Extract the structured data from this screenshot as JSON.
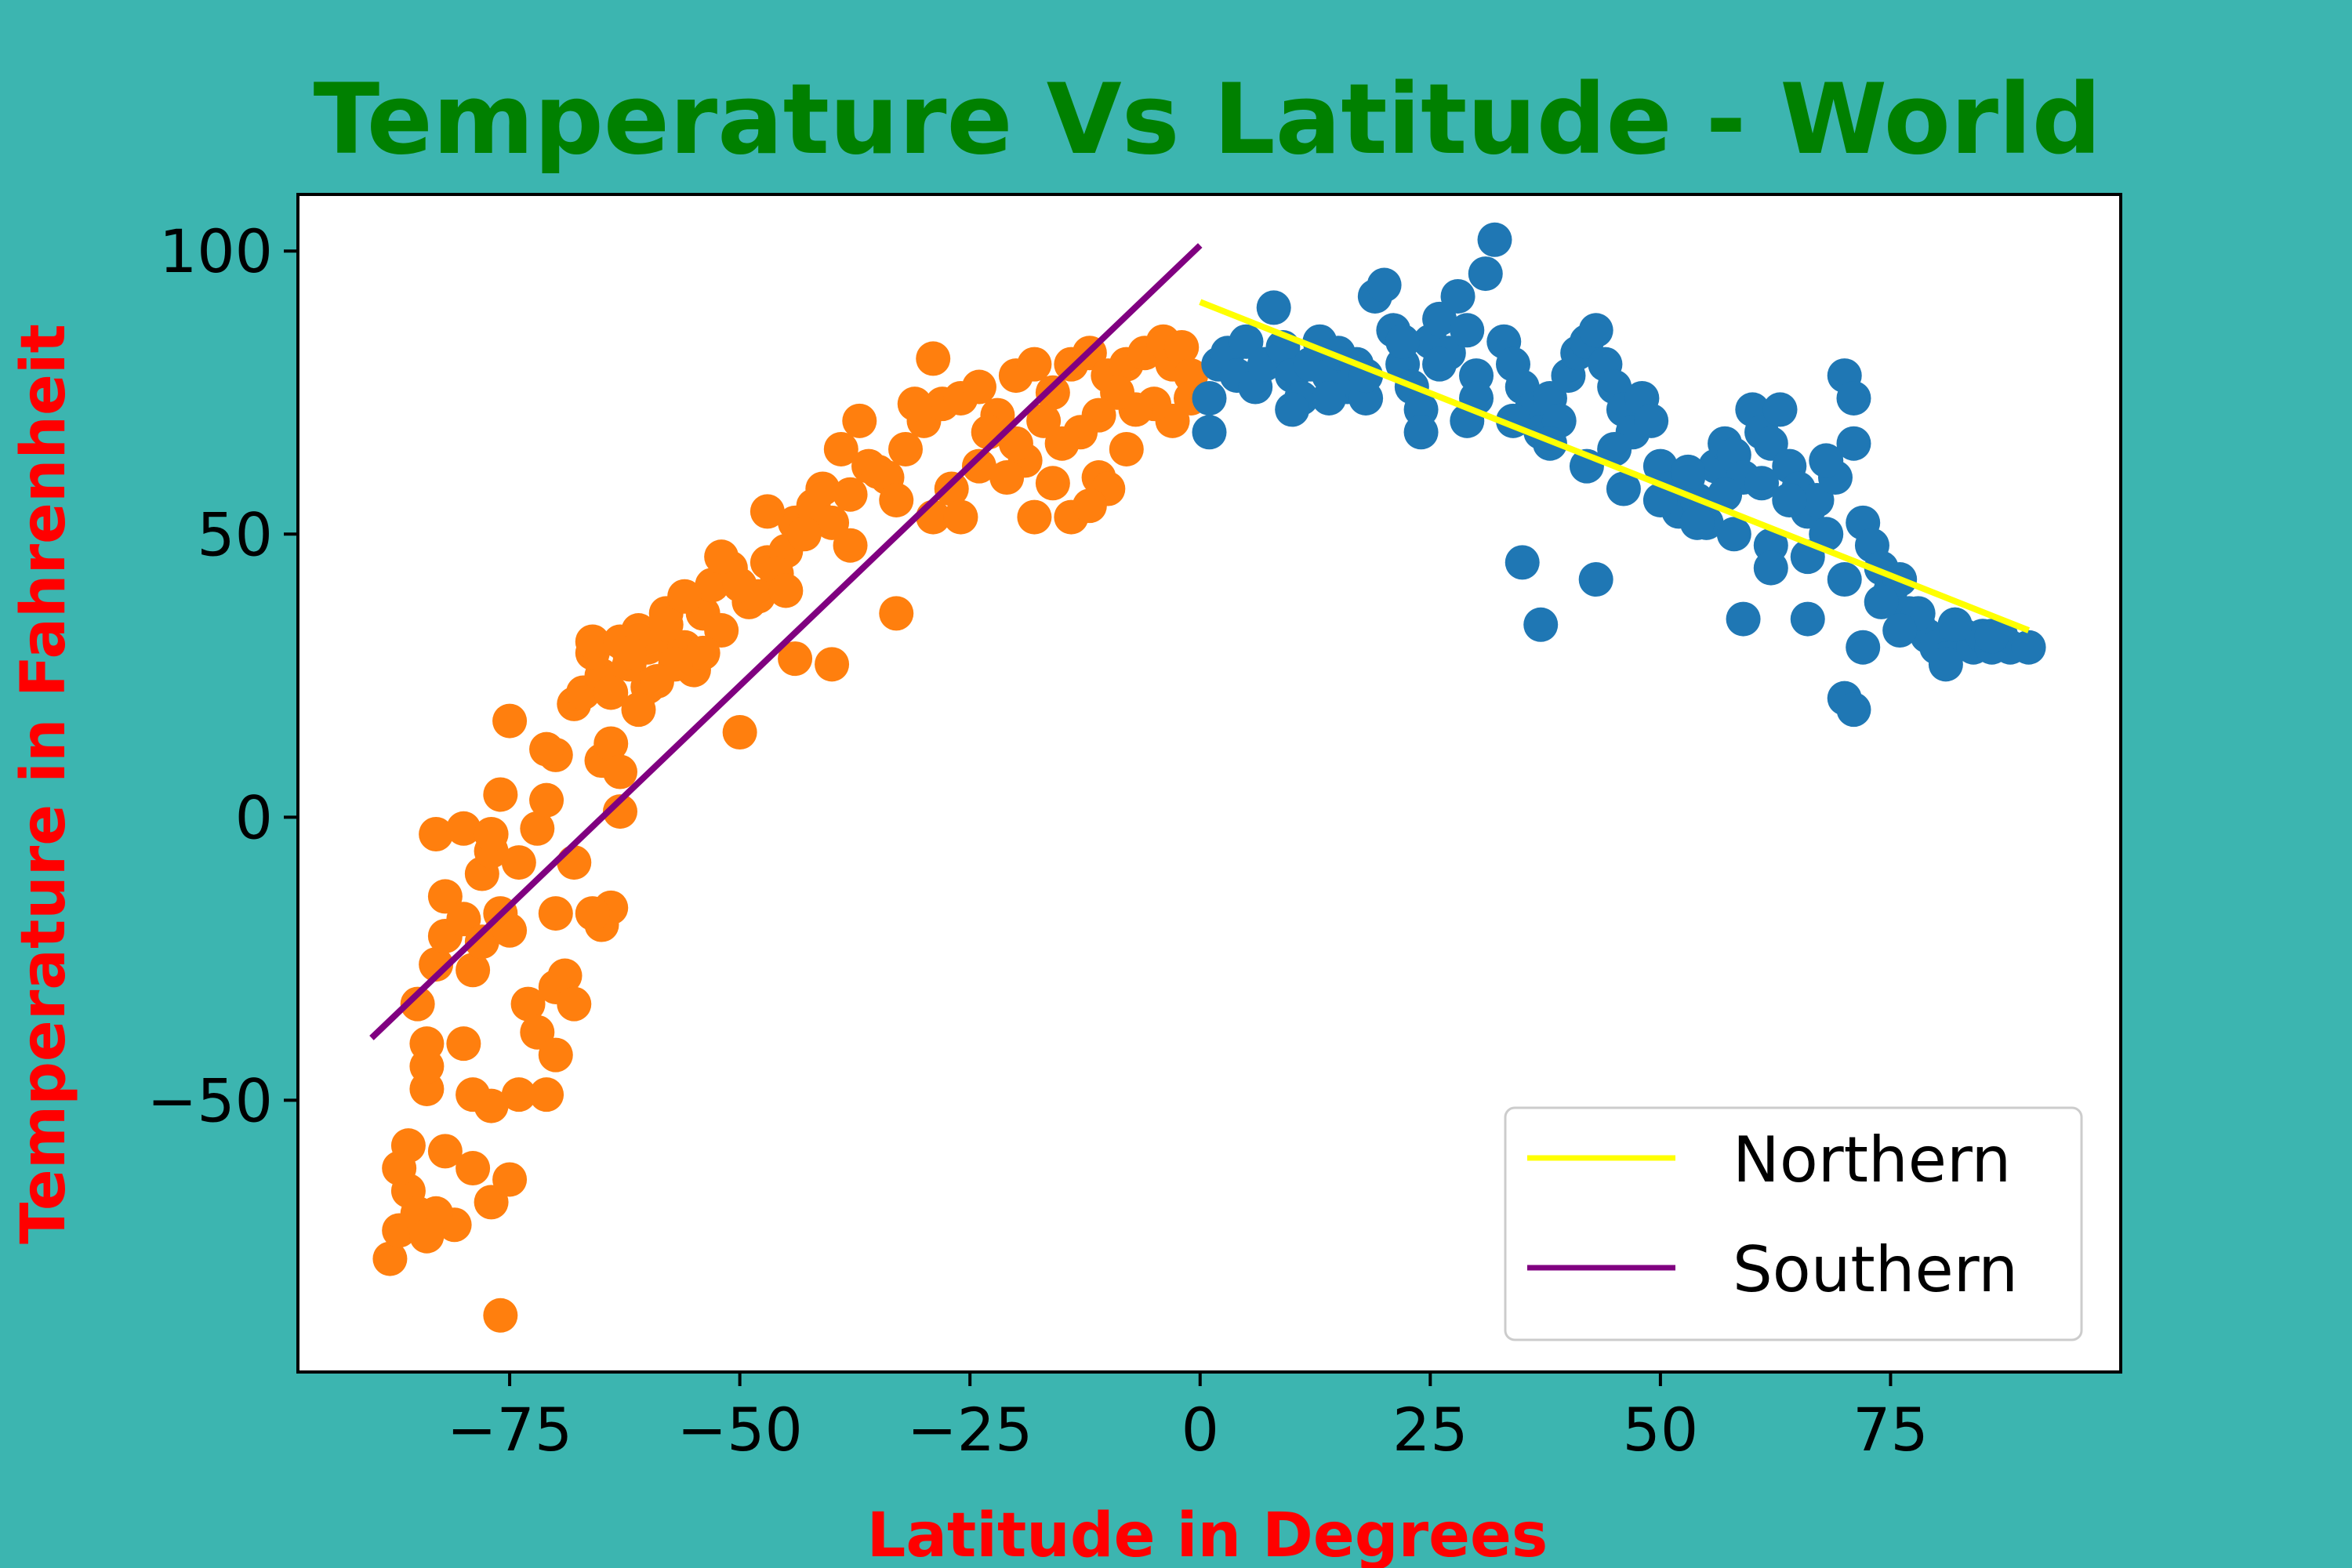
{
  "chart_data": {
    "type": "scatter",
    "title": "Temperature Vs Latitude - World",
    "xlabel": "Latitude in Degrees",
    "ylabel": "Temperature in Fahrenheit",
    "xlim": [
      -98,
      100
    ],
    "ylim": [
      -98,
      110
    ],
    "x_ticks": [
      -75,
      -50,
      -25,
      0,
      25,
      50,
      75
    ],
    "y_ticks": [
      -50,
      0,
      50,
      100
    ],
    "x_tick_labels": [
      "−75",
      "−50",
      "−25",
      "0",
      "25",
      "50",
      "75"
    ],
    "y_tick_labels": [
      "−50",
      "0",
      "50",
      "100"
    ],
    "grid": false,
    "legend_position": "lower-right",
    "colors": {
      "background": "#3cb5b0",
      "title": "#008000",
      "axis_label": "#ff0000",
      "southern_points": "#ff7f0e",
      "northern_points": "#1f77b4",
      "northern_line": "#ffff00",
      "southern_line": "#800080"
    },
    "scatter_series": [
      {
        "group": "southern",
        "color": "#ff7f0e",
        "points": [
          [
            -88,
            -78
          ],
          [
            -87,
            -73
          ],
          [
            -86,
            -66
          ],
          [
            -85,
            -70
          ],
          [
            -87,
            -62
          ],
          [
            -86,
            -58
          ],
          [
            -84,
            -48
          ],
          [
            -84,
            -44
          ],
          [
            -84,
            -40
          ],
          [
            -85,
            -33
          ],
          [
            -83,
            -26
          ],
          [
            -82,
            -14
          ],
          [
            -83,
            -3
          ],
          [
            -80,
            -2
          ],
          [
            -82,
            -21
          ],
          [
            -80,
            -18
          ],
          [
            -79,
            -27
          ],
          [
            -78,
            -22
          ],
          [
            -78,
            -10
          ],
          [
            -77,
            -6
          ],
          [
            -77,
            -3
          ],
          [
            -76,
            -17
          ],
          [
            -75,
            -20
          ],
          [
            -74,
            -8
          ],
          [
            -76,
            4
          ],
          [
            -75,
            17
          ],
          [
            -72,
            -2
          ],
          [
            -71,
            3
          ],
          [
            -70,
            -17
          ],
          [
            -70,
            -30
          ],
          [
            -73,
            -33
          ],
          [
            -72,
            -38
          ],
          [
            -70,
            -42
          ],
          [
            -71,
            -49
          ],
          [
            -74,
            -49
          ],
          [
            -77,
            -51
          ],
          [
            -79,
            -49
          ],
          [
            -80,
            -40
          ],
          [
            -82,
            -59
          ],
          [
            -79,
            -62
          ],
          [
            -81,
            -72
          ],
          [
            -83,
            -70
          ],
          [
            -84,
            -74
          ],
          [
            -77,
            -68
          ],
          [
            -75,
            -64
          ],
          [
            -76,
            -88
          ],
          [
            -69,
            -28
          ],
          [
            -68,
            -33
          ],
          [
            -68,
            -8
          ],
          [
            -70,
            11
          ],
          [
            -71,
            12
          ],
          [
            -68,
            20
          ],
          [
            -67,
            22
          ],
          [
            -65,
            25
          ],
          [
            -66,
            29
          ],
          [
            -66,
            31
          ],
          [
            -65,
            10
          ],
          [
            -64,
            13
          ],
          [
            -63,
            8
          ],
          [
            -64,
            -16
          ],
          [
            -65,
            -19
          ],
          [
            -66,
            -17
          ],
          [
            -63,
            1
          ],
          [
            -62,
            27
          ],
          [
            -60,
            23
          ],
          [
            -60,
            30
          ],
          [
            -58,
            32
          ],
          [
            -58,
            36
          ],
          [
            -56,
            30
          ],
          [
            -55,
            26
          ],
          [
            -54,
            36
          ],
          [
            -53,
            41
          ],
          [
            -51,
            44
          ],
          [
            -49,
            38
          ],
          [
            -47,
            45
          ],
          [
            -45,
            47
          ],
          [
            -44,
            52
          ],
          [
            -42,
            55
          ],
          [
            -40,
            52
          ],
          [
            -38,
            57
          ],
          [
            -36,
            62
          ],
          [
            -34,
            60
          ],
          [
            -33,
            56
          ],
          [
            -32,
            65
          ],
          [
            -30,
            70
          ],
          [
            -28,
            73
          ],
          [
            -26,
            74
          ],
          [
            -24,
            76
          ],
          [
            -22,
            71
          ],
          [
            -20,
            78
          ],
          [
            -18,
            80
          ],
          [
            -16,
            75
          ],
          [
            -14,
            80
          ],
          [
            -12,
            82
          ],
          [
            -10,
            78
          ],
          [
            -8,
            80
          ],
          [
            -6,
            82
          ],
          [
            -4,
            84
          ],
          [
            -3,
            80
          ],
          [
            -2,
            83
          ],
          [
            -1,
            78
          ],
          [
            -1,
            74
          ],
          [
            -3,
            70
          ],
          [
            -5,
            73
          ],
          [
            -7,
            72
          ],
          [
            -9,
            75
          ],
          [
            -11,
            71
          ],
          [
            -13,
            68
          ],
          [
            -15,
            66
          ],
          [
            -17,
            70
          ],
          [
            -19,
            63
          ],
          [
            -21,
            60
          ],
          [
            -24,
            62
          ],
          [
            -27,
            58
          ],
          [
            -29,
            53
          ],
          [
            -26,
            53
          ],
          [
            -18,
            53
          ],
          [
            -14,
            53
          ],
          [
            -16,
            59
          ],
          [
            -11,
            60
          ],
          [
            -8,
            65
          ],
          [
            -10,
            58
          ],
          [
            -12,
            55
          ],
          [
            -20,
            66
          ],
          [
            -23,
            68
          ],
          [
            -31,
            73
          ],
          [
            -29,
            81
          ],
          [
            -37,
            70
          ],
          [
            -39,
            65
          ],
          [
            -41,
            58
          ],
          [
            -43,
            50
          ],
          [
            -46,
            43
          ],
          [
            -48,
            39
          ],
          [
            -50,
            41
          ],
          [
            -52,
            33
          ],
          [
            -54,
            29
          ],
          [
            -57,
            27
          ],
          [
            -59,
            24
          ],
          [
            -61,
            33
          ],
          [
            -63,
            31
          ],
          [
            -64,
            22
          ],
          [
            -61,
            19
          ],
          [
            -50,
            15
          ],
          [
            -44,
            28
          ],
          [
            -40,
            27
          ],
          [
            -33,
            36
          ],
          [
            -35,
            61
          ],
          [
            -47,
            54
          ],
          [
            -52,
            46
          ],
          [
            -56,
            39
          ],
          [
            -58,
            34
          ],
          [
            -62,
            29
          ],
          [
            -45,
            40
          ],
          [
            -38,
            48
          ]
        ]
      },
      {
        "group": "northern",
        "color": "#1f77b4",
        "points": [
          [
            1,
            68
          ],
          [
            1,
            74
          ],
          [
            2,
            80
          ],
          [
            3,
            82
          ],
          [
            4,
            78
          ],
          [
            5,
            84
          ],
          [
            6,
            76
          ],
          [
            7,
            80
          ],
          [
            8,
            90
          ],
          [
            9,
            83
          ],
          [
            10,
            78
          ],
          [
            11,
            74
          ],
          [
            12,
            80
          ],
          [
            13,
            84
          ],
          [
            14,
            78
          ],
          [
            15,
            82
          ],
          [
            16,
            76
          ],
          [
            17,
            80
          ],
          [
            18,
            74
          ],
          [
            19,
            92
          ],
          [
            20,
            94
          ],
          [
            21,
            86
          ],
          [
            22,
            80
          ],
          [
            23,
            76
          ],
          [
            24,
            72
          ],
          [
            25,
            84
          ],
          [
            26,
            88
          ],
          [
            27,
            82
          ],
          [
            28,
            92
          ],
          [
            29,
            86
          ],
          [
            30,
            78
          ],
          [
            31,
            96
          ],
          [
            32,
            102
          ],
          [
            33,
            84
          ],
          [
            34,
            80
          ],
          [
            35,
            76
          ],
          [
            36,
            72
          ],
          [
            37,
            68
          ],
          [
            38,
            74
          ],
          [
            39,
            70
          ],
          [
            40,
            78
          ],
          [
            41,
            82
          ],
          [
            42,
            84
          ],
          [
            43,
            86
          ],
          [
            44,
            80
          ],
          [
            45,
            76
          ],
          [
            46,
            72
          ],
          [
            47,
            68
          ],
          [
            48,
            74
          ],
          [
            49,
            70
          ],
          [
            50,
            62
          ],
          [
            51,
            58
          ],
          [
            52,
            54
          ],
          [
            53,
            60
          ],
          [
            54,
            56
          ],
          [
            55,
            52
          ],
          [
            56,
            62
          ],
          [
            57,
            66
          ],
          [
            58,
            64
          ],
          [
            59,
            60
          ],
          [
            60,
            72
          ],
          [
            61,
            68
          ],
          [
            62,
            66
          ],
          [
            63,
            72
          ],
          [
            64,
            62
          ],
          [
            65,
            58
          ],
          [
            66,
            54
          ],
          [
            67,
            56
          ],
          [
            68,
            50
          ],
          [
            69,
            60
          ],
          [
            70,
            78
          ],
          [
            71,
            74
          ],
          [
            72,
            52
          ],
          [
            73,
            48
          ],
          [
            74,
            44
          ],
          [
            75,
            40
          ],
          [
            76,
            42
          ],
          [
            77,
            36
          ],
          [
            78,
            34
          ],
          [
            79,
            32
          ],
          [
            80,
            30
          ],
          [
            81,
            28
          ],
          [
            82,
            34
          ],
          [
            83,
            32
          ],
          [
            84,
            30
          ],
          [
            85,
            32
          ],
          [
            86,
            30
          ],
          [
            87,
            32
          ],
          [
            88,
            30
          ],
          [
            90,
            30
          ],
          [
            10,
            72
          ],
          [
            14,
            74
          ],
          [
            18,
            78
          ],
          [
            22,
            84
          ],
          [
            26,
            80
          ],
          [
            30,
            74
          ],
          [
            34,
            70
          ],
          [
            38,
            66
          ],
          [
            42,
            62
          ],
          [
            46,
            58
          ],
          [
            50,
            56
          ],
          [
            54,
            52
          ],
          [
            58,
            50
          ],
          [
            62,
            48
          ],
          [
            66,
            46
          ],
          [
            70,
            42
          ],
          [
            74,
            38
          ],
          [
            78,
            36
          ],
          [
            82,
            34
          ],
          [
            86,
            32
          ],
          [
            35,
            45
          ],
          [
            37,
            34
          ],
          [
            43,
            42
          ],
          [
            59,
            35
          ],
          [
            66,
            35
          ],
          [
            70,
            21
          ],
          [
            71,
            19
          ],
          [
            72,
            30
          ],
          [
            76,
            33
          ],
          [
            81,
            27
          ],
          [
            62,
            44
          ],
          [
            64,
            56
          ],
          [
            68,
            63
          ],
          [
            71,
            66
          ],
          [
            24,
            68
          ],
          [
            29,
            70
          ],
          [
            45,
            65
          ],
          [
            53,
            61
          ],
          [
            57,
            57
          ],
          [
            61,
            59
          ]
        ]
      }
    ],
    "regression_lines": [
      {
        "name": "Northern",
        "color": "#ffff00",
        "x": [
          0,
          90
        ],
        "y": [
          91,
          33
        ]
      },
      {
        "name": "Southern",
        "color": "#800080",
        "x": [
          -90,
          0
        ],
        "y": [
          -39,
          101
        ]
      }
    ],
    "legend": [
      {
        "label": "Northern",
        "color": "#ffff00"
      },
      {
        "label": "Southern",
        "color": "#800080"
      }
    ]
  }
}
